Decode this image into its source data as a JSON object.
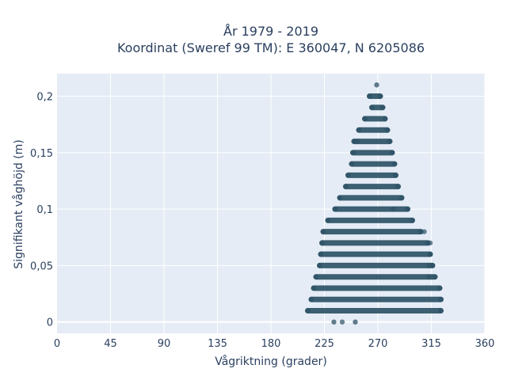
{
  "chart_data": {
    "type": "scatter",
    "title_lines": [
      "År 1979 - 2019",
      "Koordinat (Sweref 99 TM): E 360047, N 6205086"
    ],
    "xlabel": "Vågriktning (grader)",
    "ylabel": "Signifikant våghöjd (m)",
    "xlim": [
      0,
      360
    ],
    "ylim": [
      -0.01,
      0.22
    ],
    "xticks": [
      0,
      45,
      90,
      135,
      180,
      225,
      270,
      315,
      360
    ],
    "xtick_labels": [
      "0",
      "45",
      "90",
      "135",
      "180",
      "225",
      "270",
      "315",
      "360"
    ],
    "yticks": [
      0,
      0.05,
      0.1,
      0.15,
      0.2
    ],
    "ytick_labels": [
      "0",
      "0,05",
      "0,1",
      "0,15",
      "0,2"
    ],
    "grid": true,
    "marker_color": "#2e5366",
    "background_color": "#e5ecf6",
    "note": "Waves occur at discrete height levels; each band spans the direction range shown.",
    "bands": [
      {
        "y": 0.0,
        "x_min": 233,
        "x_max": 251
      },
      {
        "y": 0.01,
        "x_min": 211,
        "x_max": 323
      },
      {
        "y": 0.02,
        "x_min": 214,
        "x_max": 323
      },
      {
        "y": 0.03,
        "x_min": 216,
        "x_max": 322
      },
      {
        "y": 0.04,
        "x_min": 218,
        "x_max": 318
      },
      {
        "y": 0.05,
        "x_min": 221,
        "x_max": 316
      },
      {
        "y": 0.06,
        "x_min": 222,
        "x_max": 314
      },
      {
        "y": 0.07,
        "x_min": 223,
        "x_max": 312
      },
      {
        "y": 0.08,
        "x_min": 224,
        "x_max": 306
      },
      {
        "y": 0.09,
        "x_min": 228,
        "x_max": 299
      },
      {
        "y": 0.1,
        "x_min": 234,
        "x_max": 295
      },
      {
        "y": 0.11,
        "x_min": 238,
        "x_max": 290
      },
      {
        "y": 0.12,
        "x_min": 243,
        "x_max": 287
      },
      {
        "y": 0.13,
        "x_min": 245,
        "x_max": 285
      },
      {
        "y": 0.14,
        "x_min": 248,
        "x_max": 284
      },
      {
        "y": 0.15,
        "x_min": 249,
        "x_max": 282
      },
      {
        "y": 0.16,
        "x_min": 250,
        "x_max": 280
      },
      {
        "y": 0.17,
        "x_min": 254,
        "x_max": 278
      },
      {
        "y": 0.18,
        "x_min": 259,
        "x_max": 276
      },
      {
        "y": 0.19,
        "x_min": 265,
        "x_max": 274
      },
      {
        "y": 0.2,
        "x_min": 263,
        "x_max": 272
      },
      {
        "y": 0.21,
        "x_min": 269,
        "x_max": 269
      }
    ],
    "outliers": [
      {
        "x": 240,
        "y": 0.0
      },
      {
        "x": 313,
        "y": 0.04
      },
      {
        "x": 313,
        "y": 0.05
      },
      {
        "x": 314,
        "y": 0.06
      },
      {
        "x": 314,
        "y": 0.07
      },
      {
        "x": 309,
        "y": 0.08
      },
      {
        "x": 283,
        "y": 0.1
      },
      {
        "x": 253,
        "y": 0.16
      }
    ]
  }
}
